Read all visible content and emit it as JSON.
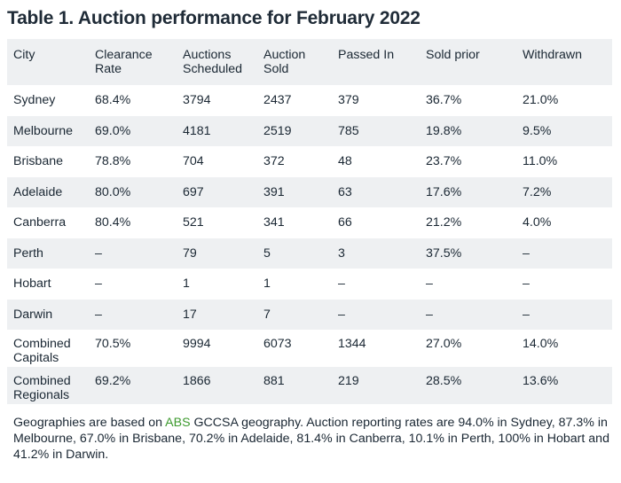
{
  "title": "Table 1. Auction performance for February 2022",
  "headers": [
    [
      "City"
    ],
    [
      "Clearance",
      "Rate"
    ],
    [
      "Auctions",
      "Scheduled"
    ],
    [
      "Auction",
      "Sold"
    ],
    [
      "Passed In"
    ],
    [
      "Sold prior"
    ],
    [
      "Withdrawn"
    ]
  ],
  "rows": [
    [
      [
        "Sydney"
      ],
      [
        "68.4%"
      ],
      [
        "3794"
      ],
      [
        "2437"
      ],
      [
        "379"
      ],
      [
        "36.7%"
      ],
      [
        "21.0%"
      ]
    ],
    [
      [
        "Melbourne"
      ],
      [
        "69.0%"
      ],
      [
        "4181"
      ],
      [
        "2519"
      ],
      [
        "785"
      ],
      [
        "19.8%"
      ],
      [
        "9.5%"
      ]
    ],
    [
      [
        "Brisbane"
      ],
      [
        "78.8%"
      ],
      [
        "704"
      ],
      [
        "372"
      ],
      [
        "48"
      ],
      [
        "23.7%"
      ],
      [
        "11.0%"
      ]
    ],
    [
      [
        "Adelaide"
      ],
      [
        "80.0%"
      ],
      [
        "697"
      ],
      [
        "391"
      ],
      [
        "63"
      ],
      [
        "17.6%"
      ],
      [
        "7.2%"
      ]
    ],
    [
      [
        "Canberra"
      ],
      [
        "80.4%"
      ],
      [
        "521"
      ],
      [
        "341"
      ],
      [
        "66"
      ],
      [
        "21.2%"
      ],
      [
        "4.0%"
      ]
    ],
    [
      [
        "Perth"
      ],
      [
        "–"
      ],
      [
        "79"
      ],
      [
        "5"
      ],
      [
        "3"
      ],
      [
        "37.5%"
      ],
      [
        "–"
      ]
    ],
    [
      [
        "Hobart"
      ],
      [
        "–"
      ],
      [
        "1"
      ],
      [
        "1"
      ],
      [
        "–"
      ],
      [
        "–"
      ],
      [
        "–"
      ]
    ],
    [
      [
        "Darwin"
      ],
      [
        "–"
      ],
      [
        "17"
      ],
      [
        "7"
      ],
      [
        "–"
      ],
      [
        "–"
      ],
      [
        "–"
      ]
    ],
    [
      [
        "Combined",
        "Capitals"
      ],
      [
        "70.5%"
      ],
      [
        "9994"
      ],
      [
        "6073"
      ],
      [
        "1344"
      ],
      [
        "27.0%"
      ],
      [
        "14.0%"
      ]
    ],
    [
      [
        "Combined",
        "Regionals"
      ],
      [
        "69.2%"
      ],
      [
        "1866"
      ],
      [
        "881"
      ],
      [
        "219"
      ],
      [
        "28.5%"
      ],
      [
        "13.6%"
      ]
    ]
  ],
  "footnote": {
    "before": "Geographies are based on ",
    "link": "ABS",
    "after": " GCCSA geography. Auction reporting rates are 94.0% in Sydney, 87.3%  in Melbourne, 67.0% in Brisbane, 70.2% in Adelaide, 81.4% in Canberra, 10.1% in Perth, 100% in Hobart and 41.2% in Darwin."
  },
  "colors": {
    "stripe": "#eef0f2",
    "text": "#1a2733",
    "link": "#3d9a2e"
  }
}
